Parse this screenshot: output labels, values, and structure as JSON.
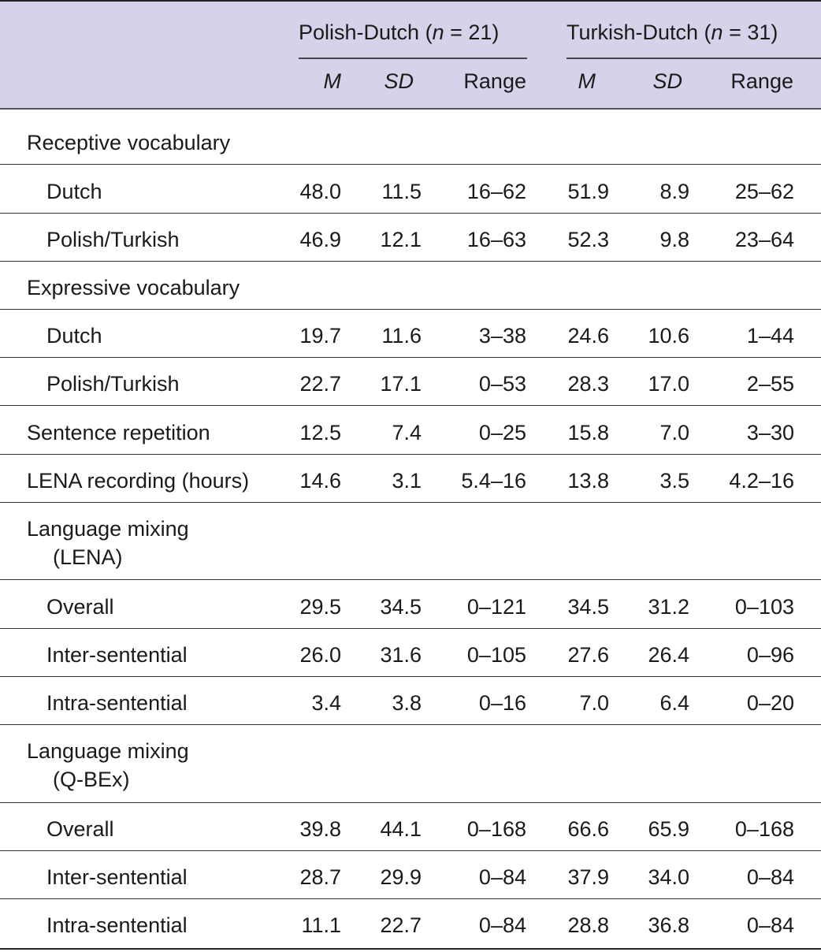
{
  "header": {
    "group1": {
      "label": "Polish-Dutch (",
      "n_label": "n",
      "n_value": " = 21)"
    },
    "group2": {
      "label": "Turkish-Dutch (",
      "n_label": "n",
      "n_value": " = 31)"
    },
    "columns": {
      "m": "M",
      "sd": "SD",
      "range": "Range"
    }
  },
  "rows": [
    {
      "label": "Receptive vocabulary"
    },
    {
      "label": "Dutch",
      "pd_m": "48.0",
      "pd_sd": "11.5",
      "pd_range": "16–62",
      "td_m": "51.9",
      "td_sd": "8.9",
      "td_range": "25–62"
    },
    {
      "label": "Polish/Turkish",
      "pd_m": "46.9",
      "pd_sd": "12.1",
      "pd_range": "16–63",
      "td_m": "52.3",
      "td_sd": "9.8",
      "td_range": "23–64"
    },
    {
      "label": "Expressive vocabulary"
    },
    {
      "label": "Dutch",
      "pd_m": "19.7",
      "pd_sd": "11.6",
      "pd_range": "3–38",
      "td_m": "24.6",
      "td_sd": "10.6",
      "td_range": "1–44"
    },
    {
      "label": "Polish/Turkish",
      "pd_m": "22.7",
      "pd_sd": "17.1",
      "pd_range": "0–53",
      "td_m": "28.3",
      "td_sd": "17.0",
      "td_range": "2–55"
    },
    {
      "label": "Sentence repetition",
      "pd_m": "12.5",
      "pd_sd": "7.4",
      "pd_range": "0–25",
      "td_m": "15.8",
      "td_sd": "7.0",
      "td_range": "3–30"
    },
    {
      "label": "LENA recording (hours)",
      "pd_m": "14.6",
      "pd_sd": "3.1",
      "pd_range": "5.4–16",
      "td_m": "13.8",
      "td_sd": "3.5",
      "td_range": "4.2–16"
    },
    {
      "label": "Language mixing",
      "label2": "(LENA)"
    },
    {
      "label": "Overall",
      "pd_m": "29.5",
      "pd_sd": "34.5",
      "pd_range": "0–121",
      "td_m": "34.5",
      "td_sd": "31.2",
      "td_range": "0–103"
    },
    {
      "label": "Inter-sentential",
      "pd_m": "26.0",
      "pd_sd": "31.6",
      "pd_range": "0–105",
      "td_m": "27.6",
      "td_sd": "26.4",
      "td_range": "0–96"
    },
    {
      "label": "Intra-sentential",
      "pd_m": "3.4",
      "pd_sd": "3.8",
      "pd_range": "0–16",
      "td_m": "7.0",
      "td_sd": "6.4",
      "td_range": "0–20"
    },
    {
      "label": "Language mixing",
      "label2": "(Q-BEx)"
    },
    {
      "label": "Overall",
      "pd_m": "39.8",
      "pd_sd": "44.1",
      "pd_range": "0–168",
      "td_m": "66.6",
      "td_sd": "65.9",
      "td_range": "0–168"
    },
    {
      "label": "Inter-sentential",
      "pd_m": "28.7",
      "pd_sd": "29.9",
      "pd_range": "0–84",
      "td_m": "37.9",
      "td_sd": "34.0",
      "td_range": "0–84"
    },
    {
      "label": "Intra-sentential",
      "pd_m": "11.1",
      "pd_sd": "22.7",
      "pd_range": "0–84",
      "td_m": "28.8",
      "td_sd": "36.8",
      "td_range": "0–84"
    }
  ]
}
